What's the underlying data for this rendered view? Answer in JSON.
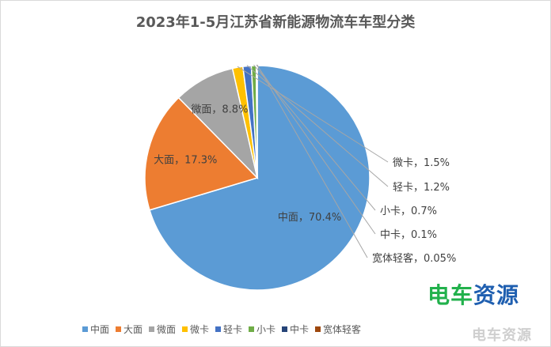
{
  "chart_data": {
    "type": "pie",
    "title": "2023年1-5月江苏省新能源物流车车型分类",
    "categories": [
      "中面",
      "大面",
      "微面",
      "微卡",
      "轻卡",
      "小卡",
      "中卡",
      "宽体轻客"
    ],
    "values": [
      70.4,
      17.3,
      8.8,
      1.5,
      1.2,
      0.7,
      0.1,
      0.05
    ],
    "value_labels": [
      "70.4%",
      "17.3%",
      "8.8%",
      "1.5%",
      "1.2%",
      "0.7%",
      "0.1%",
      "0.05%"
    ],
    "colors": [
      "#5b9bd5",
      "#ed7d31",
      "#a5a5a5",
      "#ffc000",
      "#4472c4",
      "#70ad47",
      "#264478",
      "#9e480e"
    ],
    "label_separator": "，",
    "legend_position": "bottom"
  },
  "watermark": {
    "logo_part1": "电车",
    "logo_part2": "资源",
    "corner_text": "电车资源"
  }
}
